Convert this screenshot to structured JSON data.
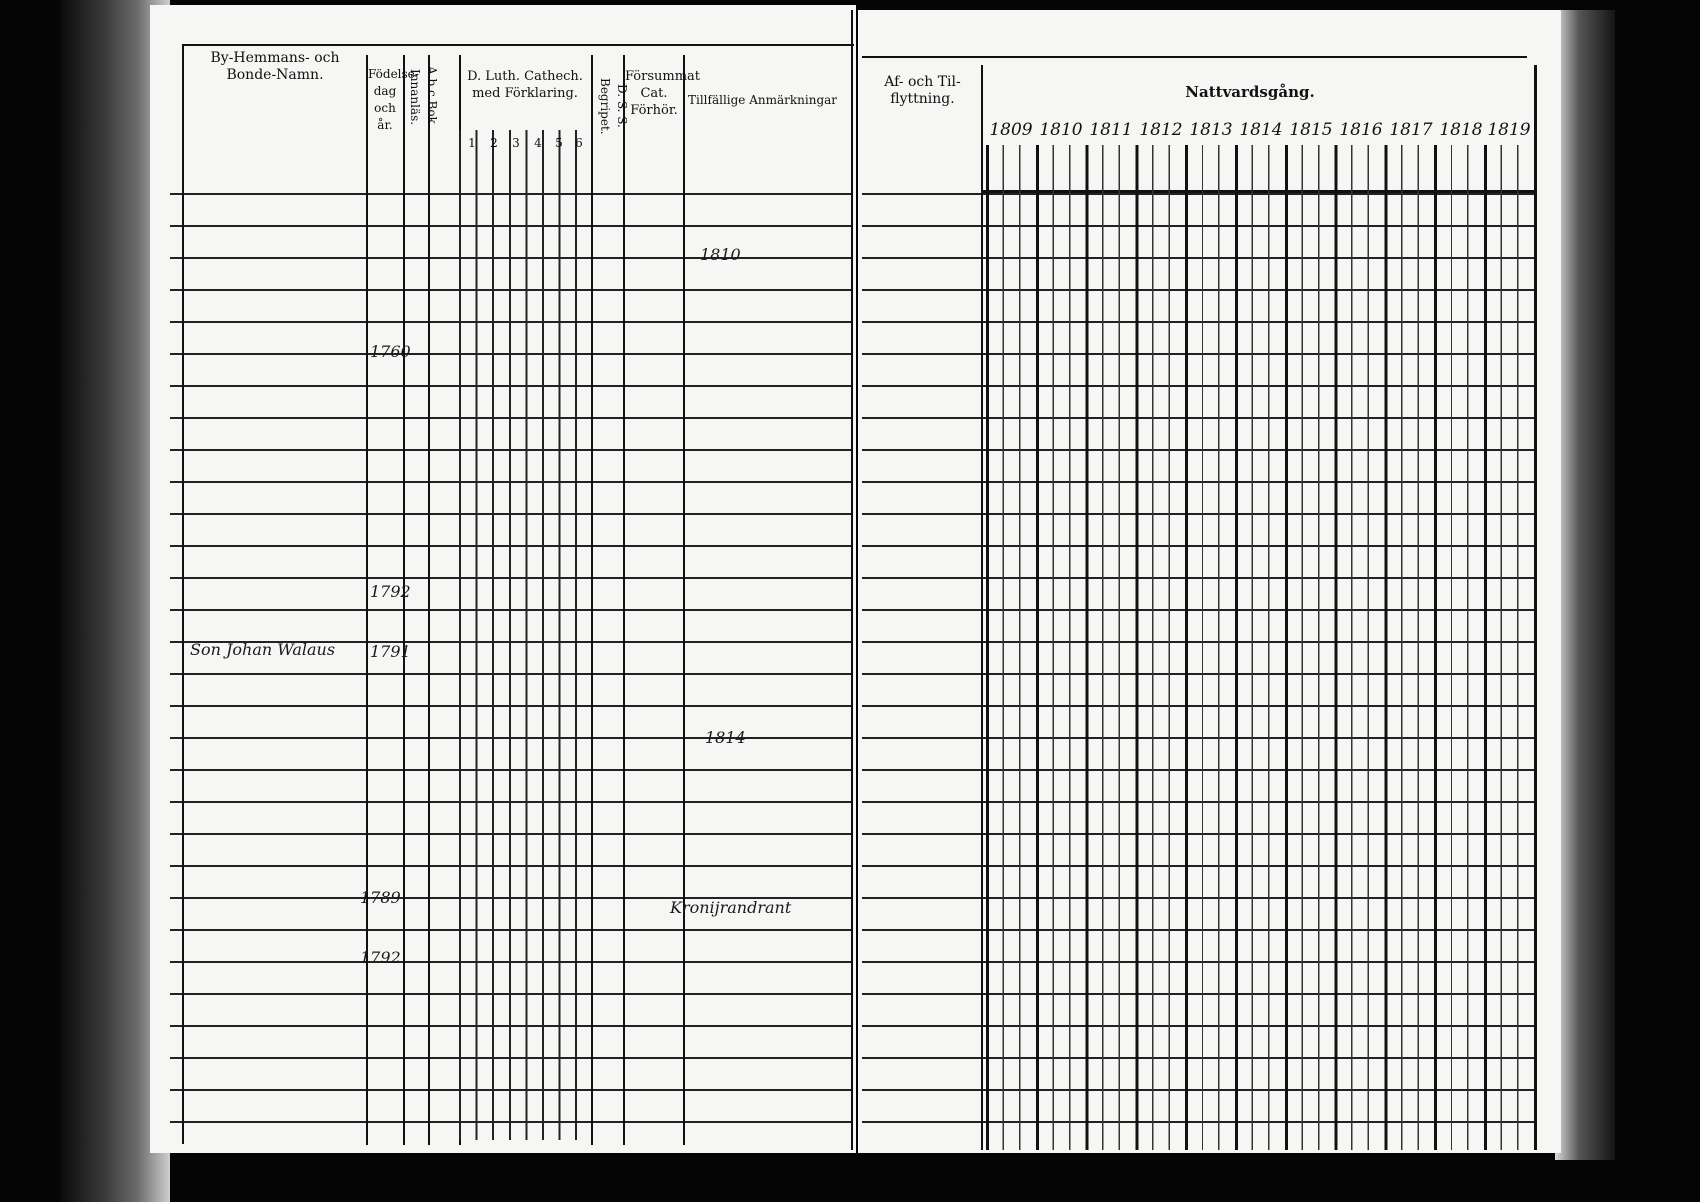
{
  "left_page": {
    "headers": {
      "names": "By-Hemmans- och Bonde-Namn.",
      "birth": "Födelse-dag och år.",
      "abc": "A.b.c Bok. Innanläs.",
      "catechism": "D. Luth. Cathech. med Förklaring.",
      "catechism_parts": [
        "1",
        "2",
        "3",
        "4",
        "5",
        "6"
      ],
      "dss": "D. S. S. Begripet.",
      "missed": "Försummat Cat. Förhör.",
      "remarks": "Tillfällige Anmärkningar"
    },
    "entries": [
      {
        "name": "Son Johan Walaus",
        "year": "1791"
      },
      {
        "name": "",
        "year": "1760"
      },
      {
        "name": "",
        "year": "1792"
      },
      {
        "name": "",
        "year": "1789"
      },
      {
        "name": "",
        "year": "1792"
      }
    ],
    "remarks": [
      "1810",
      "1814",
      "Kronijrandrant"
    ]
  },
  "right_page": {
    "headers": {
      "moves": "Af- och Til-flyttning.",
      "communion": "Nattvardsgång."
    },
    "years": [
      "1809",
      "1810",
      "1811",
      "1812",
      "1813",
      "1814",
      "1815",
      "1816",
      "1817",
      "1818",
      "1819"
    ]
  }
}
